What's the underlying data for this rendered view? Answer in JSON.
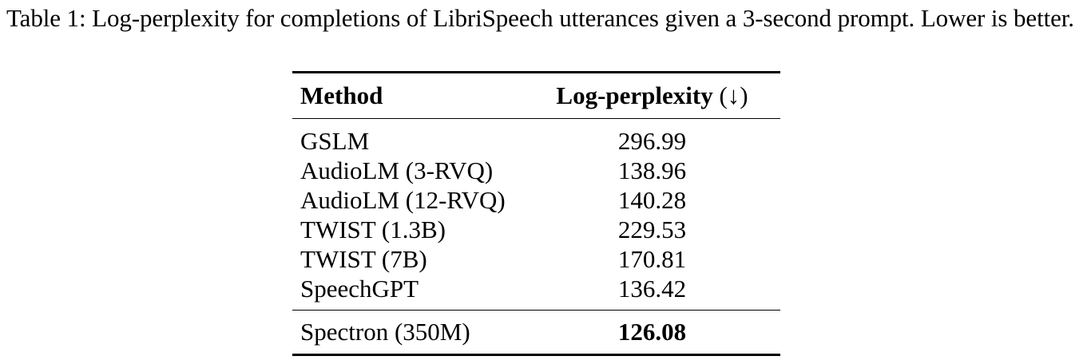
{
  "caption": "Table 1: Log-perplexity for completions of LibriSpeech utterances given a 3-second prompt. Lower is better.",
  "table": {
    "header": {
      "method": "Method",
      "metric": "Log-perplexity",
      "direction": "(↓)"
    },
    "rows": [
      {
        "method": "GSLM",
        "value": "296.99"
      },
      {
        "method": "AudioLM (3-RVQ)",
        "value": "138.96"
      },
      {
        "method": "AudioLM (12-RVQ)",
        "value": "140.28"
      },
      {
        "method": "TWIST (1.3B)",
        "value": "229.53"
      },
      {
        "method": "TWIST (7B)",
        "value": "170.81"
      },
      {
        "method": "SpeechGPT",
        "value": "136.42"
      }
    ],
    "ours": {
      "method": "Spectron (350M)",
      "value": "126.08"
    }
  }
}
